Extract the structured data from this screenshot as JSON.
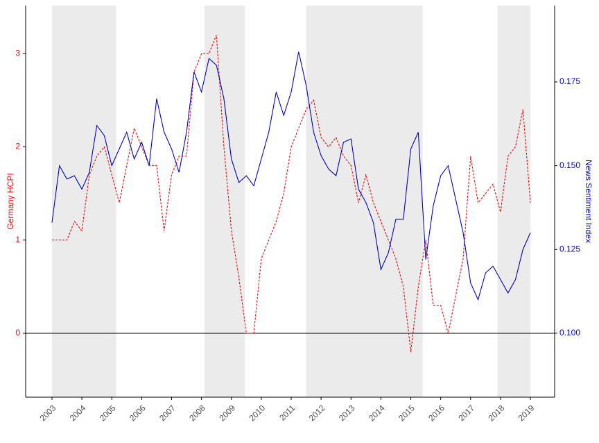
{
  "chart_data": {
    "type": "line",
    "x": [
      2003,
      2003.25,
      2003.5,
      2003.75,
      2004,
      2004.25,
      2004.5,
      2004.75,
      2005,
      2005.25,
      2005.5,
      2005.75,
      2006,
      2006.25,
      2006.5,
      2006.75,
      2007,
      2007.25,
      2007.5,
      2007.75,
      2008,
      2008.25,
      2008.5,
      2008.75,
      2009,
      2009.25,
      2009.5,
      2009.75,
      2010,
      2010.25,
      2010.5,
      2010.75,
      2011,
      2011.25,
      2011.5,
      2011.75,
      2012,
      2012.25,
      2012.5,
      2012.75,
      2013,
      2013.25,
      2013.5,
      2013.75,
      2014,
      2014.25,
      2014.5,
      2014.75,
      2015,
      2015.25,
      2015.5,
      2015.75,
      2016,
      2016.25,
      2016.5,
      2016.75,
      2017,
      2017.25,
      2017.5,
      2017.75,
      2018,
      2018.25,
      2018.5,
      2018.75,
      2019
    ],
    "series": [
      {
        "name": "Germany HCPI",
        "color": "#ff0000",
        "dash": true,
        "axis": "y",
        "values": [
          1.0,
          1.0,
          1.0,
          1.2,
          1.1,
          1.7,
          1.9,
          2.0,
          1.7,
          1.4,
          1.8,
          2.2,
          2.0,
          1.8,
          1.8,
          1.1,
          1.7,
          1.9,
          1.9,
          2.8,
          3.0,
          3.0,
          3.2,
          2.0,
          1.1,
          0.6,
          0.0,
          0.0,
          0.8,
          1.0,
          1.2,
          1.5,
          2.0,
          2.2,
          2.4,
          2.5,
          2.1,
          2.0,
          2.1,
          1.9,
          1.8,
          1.4,
          1.7,
          1.4,
          1.2,
          1.0,
          0.8,
          0.5,
          -0.2,
          0.5,
          1.0,
          0.3,
          0.3,
          0.0,
          0.4,
          0.8,
          1.9,
          1.4,
          1.5,
          1.6,
          1.3,
          1.9,
          2.0,
          2.4,
          1.4
        ]
      },
      {
        "name": "News Sentiment Index",
        "color": "#0000cc",
        "dash": false,
        "axis": "y2",
        "values": [
          0.133,
          0.15,
          0.146,
          0.147,
          0.143,
          0.148,
          0.162,
          0.159,
          0.15,
          0.155,
          0.16,
          0.152,
          0.157,
          0.15,
          0.17,
          0.16,
          0.155,
          0.148,
          0.16,
          0.178,
          0.172,
          0.182,
          0.18,
          0.17,
          0.152,
          0.145,
          0.147,
          0.144,
          0.152,
          0.16,
          0.172,
          0.165,
          0.172,
          0.184,
          0.174,
          0.16,
          0.153,
          0.149,
          0.147,
          0.157,
          0.158,
          0.143,
          0.139,
          0.133,
          0.119,
          0.124,
          0.134,
          0.134,
          0.155,
          0.16,
          0.122,
          0.138,
          0.147,
          0.15,
          0.14,
          0.13,
          0.115,
          0.11,
          0.118,
          0.12,
          0.116,
          0.112,
          0.116,
          0.125,
          0.13
        ]
      }
    ],
    "shaded_periods": [
      [
        2003,
        2005.15
      ],
      [
        2008.1,
        2009.45
      ],
      [
        2011.5,
        2015.4
      ],
      [
        2017.9,
        2019
      ]
    ],
    "hline": 0,
    "xlim": [
      2002.12,
      2019.81
    ],
    "xticks": [
      2003,
      2004,
      2005,
      2006,
      2007,
      2008,
      2009,
      2010,
      2011,
      2012,
      2013,
      2014,
      2015,
      2016,
      2017,
      2018,
      2019
    ],
    "ylim": [
      -0.685,
      3.515
    ],
    "yticks": [
      0,
      1,
      2,
      3
    ],
    "y2lim": [
      0.0809,
      0.1978
    ],
    "y2ticks": [
      {
        "value": 0.1,
        "label": "0.100"
      },
      {
        "value": 0.125,
        "label": "0.125"
      },
      {
        "value": 0.15,
        "label": "0.150"
      },
      {
        "value": 0.175,
        "label": "0.175"
      }
    ],
    "ylabel": "Germany HCPI",
    "y2label": "News Sentiment Index"
  }
}
